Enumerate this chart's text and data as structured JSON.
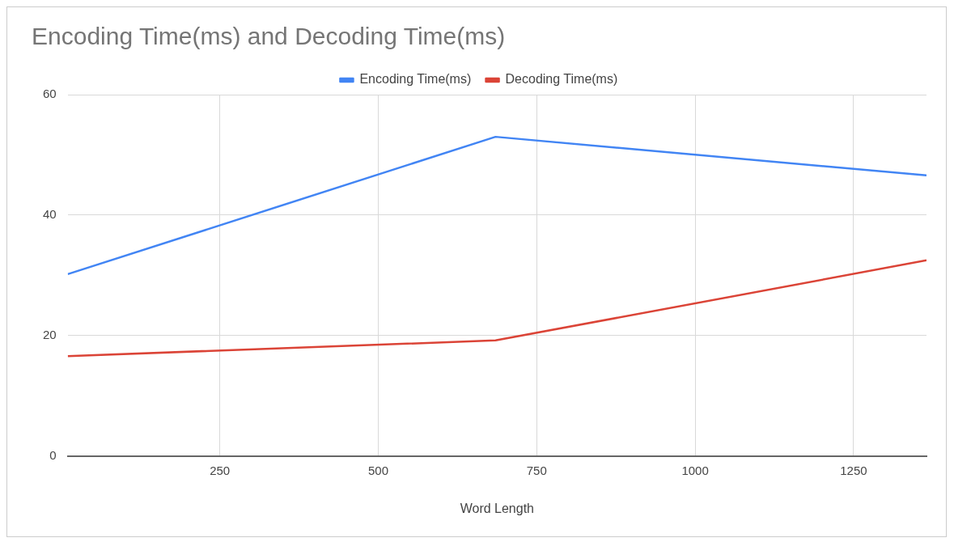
{
  "chart_data": {
    "type": "line",
    "title": "Encoding Time(ms) and Decoding Time(ms)",
    "xlabel": "Word Length",
    "x": [
      10,
      685,
      1365
    ],
    "series": [
      {
        "name": "Encoding Time(ms)",
        "color": "#4285f4",
        "values": [
          30.2,
          53,
          46.6
        ]
      },
      {
        "name": "Decoding Time(ms)",
        "color": "#db4437",
        "values": [
          16.6,
          19.2,
          32.5
        ]
      }
    ],
    "xlim": [
      10,
      1365
    ],
    "xticks": [
      250,
      500,
      750,
      1000,
      1250
    ],
    "ylim": [
      0,
      60
    ],
    "yticks": [
      0,
      20,
      40,
      60
    ],
    "grid": true,
    "legend": "top",
    "marker": "none",
    "line_style": "solid"
  }
}
